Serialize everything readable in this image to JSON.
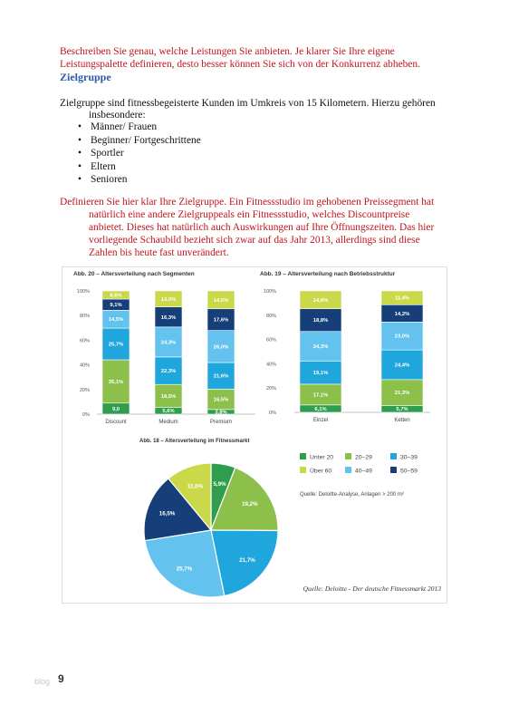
{
  "text": {
    "intro": "Beschreiben Sie genau, welche Leistungen Sie anbieten. Je klarer Sie Ihre eigene Leistungspalette definieren, desto besser können Sie sich von der Konkurrenz abheben.",
    "heading": "Zielgruppe",
    "target_line1": "Zielgruppe sind fitnessbegeisterte Kunden im Umkreis von 15 Kilometern. Hierzu gehören",
    "target_line2": "insbesondere:",
    "bullets": [
      "Männer/ Frauen",
      "Beginner/ Fortgeschrittene",
      "Sportler",
      "Eltern",
      "Senioren"
    ],
    "define_line1": "Definieren Sie hier klar Ihre Zielgruppe. Ein Fitnessstudio im gehobenen Preissegment hat",
    "define_line2": "natürlich eine andere Zielgruppeals ein Fitnessstudio, welches Discountpreise",
    "define_line3": "anbietet. Dieses hat natürlich auch Auswirkungen auf Ihre Öffnungszeiten. Das hier",
    "define_line4": "vorliegende Schaubild bezieht sich zwar auf das Jahr 2013, allerdings sind diese",
    "define_line5": "Zahlen bis heute fast unverändert.",
    "footer": "blog",
    "page_number": "9"
  },
  "colors": {
    "c1": "#2e9e4e",
    "c2": "#8cc04b",
    "c3": "#1fa6dc",
    "c4": "#c9d94a",
    "c5": "#63c3ee",
    "c6": "#163f7a"
  },
  "chart_data": [
    {
      "type": "bar",
      "stacked": true,
      "title": "Abb. 20 – Altersverteilung nach Segmenten",
      "categories": [
        "Discount",
        "Medium",
        "Premium"
      ],
      "yticks": [
        "0%",
        "20%",
        "40%",
        "60%",
        "80%",
        "100%"
      ],
      "ylim": [
        0,
        100
      ],
      "series": [
        {
          "name": "Unter 20",
          "color_key": "c1",
          "values": [
            9.0,
            5.6,
            3.8
          ],
          "labels": [
            "9,0",
            "5,6%",
            "3,8%"
          ]
        },
        {
          "name": "20–29",
          "color_key": "c2",
          "values": [
            35.1,
            18.5,
            16.5
          ],
          "labels": [
            "35,1%",
            "18,5%",
            "16,5%"
          ]
        },
        {
          "name": "30–39",
          "color_key": "c3",
          "values": [
            25.7,
            22.3,
            21.6
          ],
          "labels": [
            "25,7%",
            "22,3%",
            "21,6%"
          ]
        },
        {
          "name": "40–49",
          "color_key": "c5",
          "values": [
            14.5,
            24.3,
            26.0
          ],
          "labels": [
            "14,5%",
            "24,3%",
            "26,0%"
          ]
        },
        {
          "name": "50–59",
          "color_key": "c6",
          "values": [
            9.1,
            16.3,
            17.6
          ],
          "labels": [
            "9,1%",
            "16,3%",
            "17,6%"
          ]
        },
        {
          "name": "Über 60",
          "color_key": "c4",
          "values": [
            6.6,
            13.0,
            14.5
          ],
          "labels": [
            "6,6%",
            "13,0%",
            "14,5%"
          ]
        }
      ]
    },
    {
      "type": "bar",
      "stacked": true,
      "title": "Abb. 19 – Altersverteilung nach Betriebsstruktur",
      "categories": [
        "Einzel",
        "Ketten"
      ],
      "yticks": [
        "0%",
        "20%",
        "40%",
        "60%",
        "80%",
        "100%"
      ],
      "ylim": [
        0,
        100
      ],
      "series": [
        {
          "name": "Unter 20",
          "color_key": "c1",
          "values": [
            6.1,
            5.7
          ],
          "labels": [
            "6,1%",
            "5,7%"
          ]
        },
        {
          "name": "20–29",
          "color_key": "c2",
          "values": [
            17.1,
            21.3
          ],
          "labels": [
            "17,1%",
            "21,3%"
          ]
        },
        {
          "name": "30–39",
          "color_key": "c3",
          "values": [
            19.1,
            24.4
          ],
          "labels": [
            "19,1%",
            "24,4%"
          ]
        },
        {
          "name": "40–49",
          "color_key": "c5",
          "values": [
            24.3,
            23.0
          ],
          "labels": [
            "24,3%",
            "23,0%"
          ]
        },
        {
          "name": "50–59",
          "color_key": "c6",
          "values": [
            18.8,
            14.2
          ],
          "labels": [
            "18,8%",
            "14,2%"
          ]
        },
        {
          "name": "Über 60",
          "color_key": "c4",
          "values": [
            14.6,
            11.4
          ],
          "labels": [
            "14,6%",
            "11,4%"
          ]
        }
      ]
    },
    {
      "type": "pie",
      "title": "Abb. 18 – Altersverteilung im Fitnessmarkt",
      "slices": [
        {
          "name": "Unter 20",
          "color_key": "c1",
          "value": 5.9,
          "label": "5,9%"
        },
        {
          "name": "20–29",
          "color_key": "c2",
          "value": 19.2,
          "label": "19,2%"
        },
        {
          "name": "30–39",
          "color_key": "c3",
          "value": 21.7,
          "label": "21,7%"
        },
        {
          "name": "40–49",
          "color_key": "c5",
          "value": 25.7,
          "label": "25,7%"
        },
        {
          "name": "50–59",
          "color_key": "c6",
          "value": 16.5,
          "label": "16,5%"
        },
        {
          "name": "Über 60",
          "color_key": "c4",
          "value": 11.0,
          "label": "11,0%"
        }
      ],
      "legend": [
        {
          "label": "Unter 20",
          "color_key": "c1"
        },
        {
          "label": "20–29",
          "color_key": "c2"
        },
        {
          "label": "30–39",
          "color_key": "c3"
        },
        {
          "label": "Über 60",
          "color_key": "c4"
        },
        {
          "label": "40–49",
          "color_key": "c5"
        },
        {
          "label": "50–59",
          "color_key": "c6"
        }
      ],
      "note": "Quelle: Deloitte-Analyse, Anlagen > 200 m²",
      "source": "Quelle: Deloitte - Der deutsche Fitnessmarkt 2013"
    }
  ]
}
